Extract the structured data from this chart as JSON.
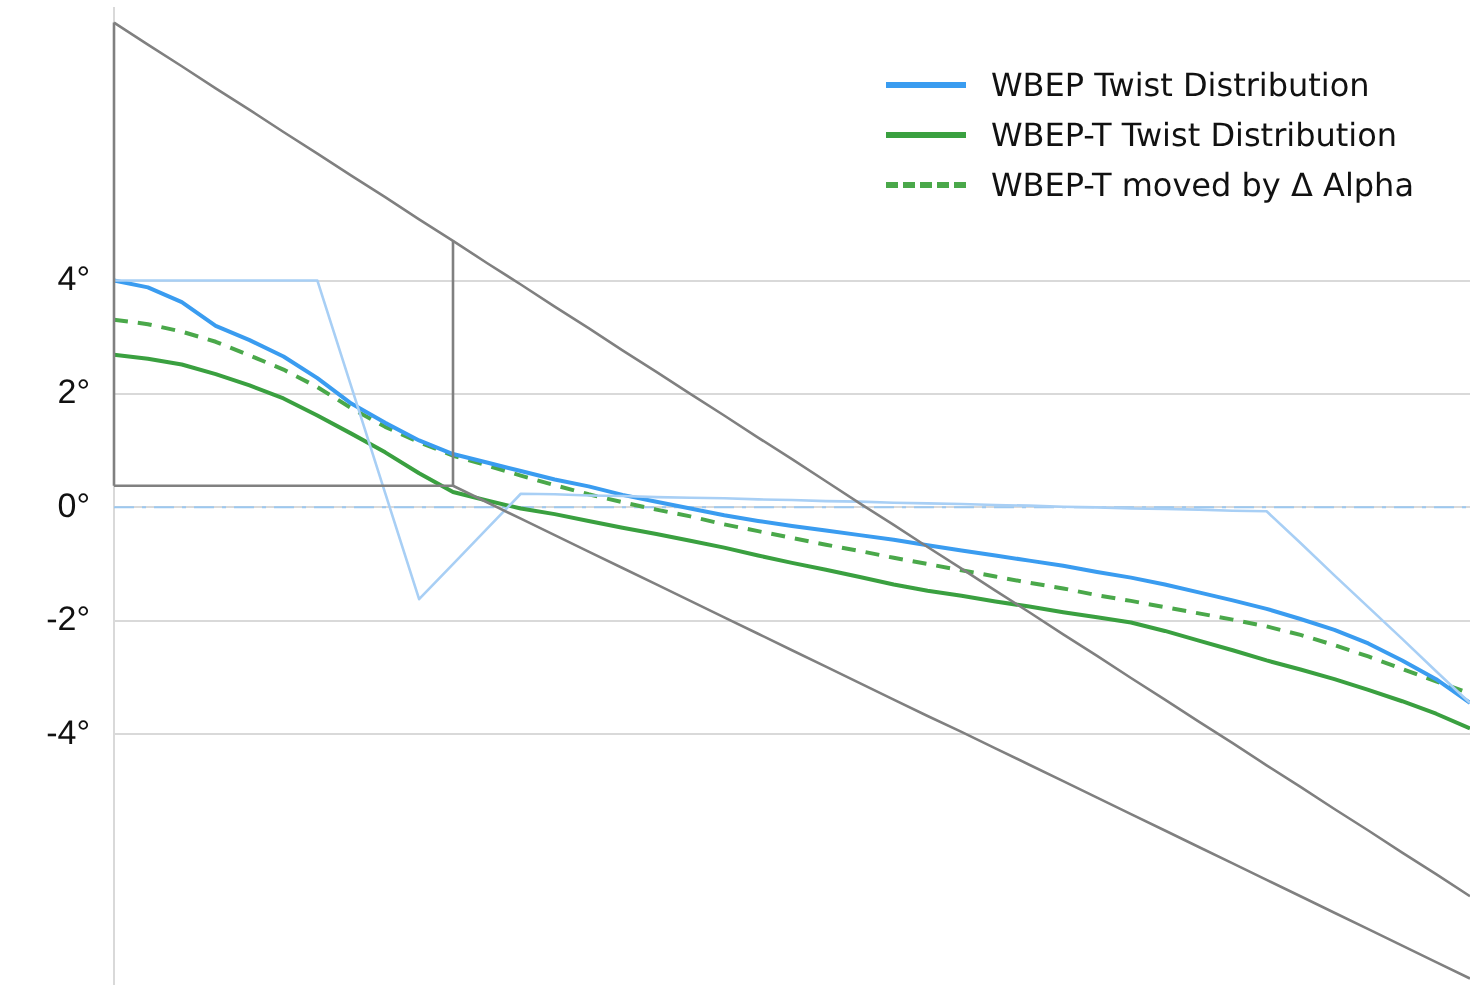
{
  "chart_data": {
    "type": "line",
    "ylim": [
      -8.4,
      8.8
    ],
    "categories": [
      null,
      null,
      null,
      null,
      null,
      null,
      null,
      null,
      null,
      null,
      null,
      null,
      null,
      null,
      null,
      null,
      null,
      null,
      null,
      null,
      null,
      null,
      null,
      null,
      null,
      null,
      null,
      null,
      null,
      null,
      null,
      null,
      null,
      null,
      null,
      null,
      null,
      null,
      null,
      null,
      null
    ],
    "yticks": [
      {
        "value": 4,
        "label": "4°"
      },
      {
        "value": 2,
        "label": "2°"
      },
      {
        "value": 0,
        "label": "0°"
      },
      {
        "value": -2,
        "label": "-2°"
      },
      {
        "value": -4,
        "label": "-4°"
      }
    ],
    "tick_labels": "y",
    "grid": "y",
    "legend": "top right",
    "marker": "none",
    "ref_lines": [
      {
        "axis": "y",
        "value": 0,
        "color": "#9cc8f0",
        "line_style": "dashed"
      }
    ],
    "series": [
      {
        "color": "#808080",
        "values": [
          8.55,
          8.16,
          7.78,
          7.39,
          7.01,
          6.62,
          6.24,
          5.85,
          5.47,
          5.08,
          4.7,
          4.31,
          3.93,
          3.54,
          3.16,
          2.77,
          2.39,
          2.0,
          1.62,
          1.23,
          0.85,
          0.46,
          0.07,
          -0.31,
          -0.7,
          -1.08,
          -1.47,
          -1.85,
          -2.24,
          -2.62,
          -3.01,
          -3.39,
          -3.78,
          -4.16,
          -4.55,
          -4.93,
          -5.32,
          -5.7,
          -6.09,
          -6.47,
          -6.86
        ]
      },
      {
        "color": "#808080",
        "values": [
          0.38,
          0.38,
          0.38,
          0.38,
          0.38,
          0.38,
          0.38,
          0.38,
          0.38,
          0.38,
          0.38,
          0.09,
          -0.2,
          -0.49,
          -0.78,
          -1.07,
          -1.36,
          -1.65,
          -1.94,
          -2.23,
          -2.52,
          -2.81,
          -3.1,
          -3.39,
          -3.68,
          -3.96,
          -4.25,
          -4.54,
          -4.83,
          -5.12,
          -5.41,
          -5.7,
          -5.99,
          -6.28,
          -6.57,
          -6.86,
          -7.15,
          -7.44,
          -7.73,
          -8.02,
          -8.31
        ]
      },
      {
        "color": "#a8cff5",
        "values": [
          4.0,
          4.0,
          4.0,
          4.0,
          4.0,
          4.0,
          4.0,
          2.13,
          0.25,
          -1.62,
          -1.0,
          -0.38,
          0.24,
          0.23,
          0.21,
          0.2,
          0.18,
          0.17,
          0.16,
          0.14,
          0.13,
          0.11,
          0.1,
          0.08,
          0.07,
          0.06,
          0.04,
          0.03,
          0.01,
          0.0,
          -0.02,
          -0.03,
          -0.04,
          -0.06,
          -0.07,
          -0.63,
          -1.2,
          -1.76,
          -2.32,
          -2.89,
          -3.45
        ]
      },
      {
        "name": "WBEP Twist Distribution",
        "color": "#3a9cf0",
        "values": [
          4.0,
          3.88,
          3.62,
          3.2,
          2.95,
          2.66,
          2.28,
          1.83,
          1.49,
          1.18,
          0.94,
          0.79,
          0.64,
          0.49,
          0.37,
          0.22,
          0.1,
          -0.02,
          -0.14,
          -0.24,
          -0.33,
          -0.41,
          -0.49,
          -0.57,
          -0.67,
          -0.76,
          -0.85,
          -0.94,
          -1.03,
          -1.14,
          -1.24,
          -1.36,
          -1.5,
          -1.64,
          -1.79,
          -1.97,
          -2.16,
          -2.4,
          -2.7,
          -3.03,
          -3.45
        ]
      },
      {
        "name": "WBEP-T Twist Distribution",
        "color": "#3aa040",
        "values": [
          2.69,
          2.62,
          2.52,
          2.35,
          2.15,
          1.92,
          1.62,
          1.3,
          0.97,
          0.6,
          0.27,
          0.12,
          -0.02,
          -0.12,
          -0.24,
          -0.36,
          -0.47,
          -0.59,
          -0.71,
          -0.85,
          -0.98,
          -1.1,
          -1.23,
          -1.36,
          -1.47,
          -1.56,
          -1.66,
          -1.75,
          -1.85,
          -1.94,
          -2.03,
          -2.18,
          -2.35,
          -2.52,
          -2.7,
          -2.86,
          -3.03,
          -3.22,
          -3.42,
          -3.64,
          -3.9
        ]
      },
      {
        "name": "WBEP-T moved by Δ Alpha",
        "color": "#4aa84a",
        "line_style": "dashed",
        "values": [
          3.31,
          3.23,
          3.1,
          2.92,
          2.68,
          2.43,
          2.12,
          1.75,
          1.42,
          1.15,
          0.91,
          0.74,
          0.56,
          0.39,
          0.23,
          0.09,
          -0.04,
          -0.16,
          -0.3,
          -0.42,
          -0.54,
          -0.66,
          -0.77,
          -0.89,
          -1.0,
          -1.11,
          -1.22,
          -1.33,
          -1.43,
          -1.55,
          -1.65,
          -1.76,
          -1.87,
          -1.98,
          -2.1,
          -2.25,
          -2.43,
          -2.63,
          -2.85,
          -3.07,
          -3.28
        ]
      }
    ]
  }
}
